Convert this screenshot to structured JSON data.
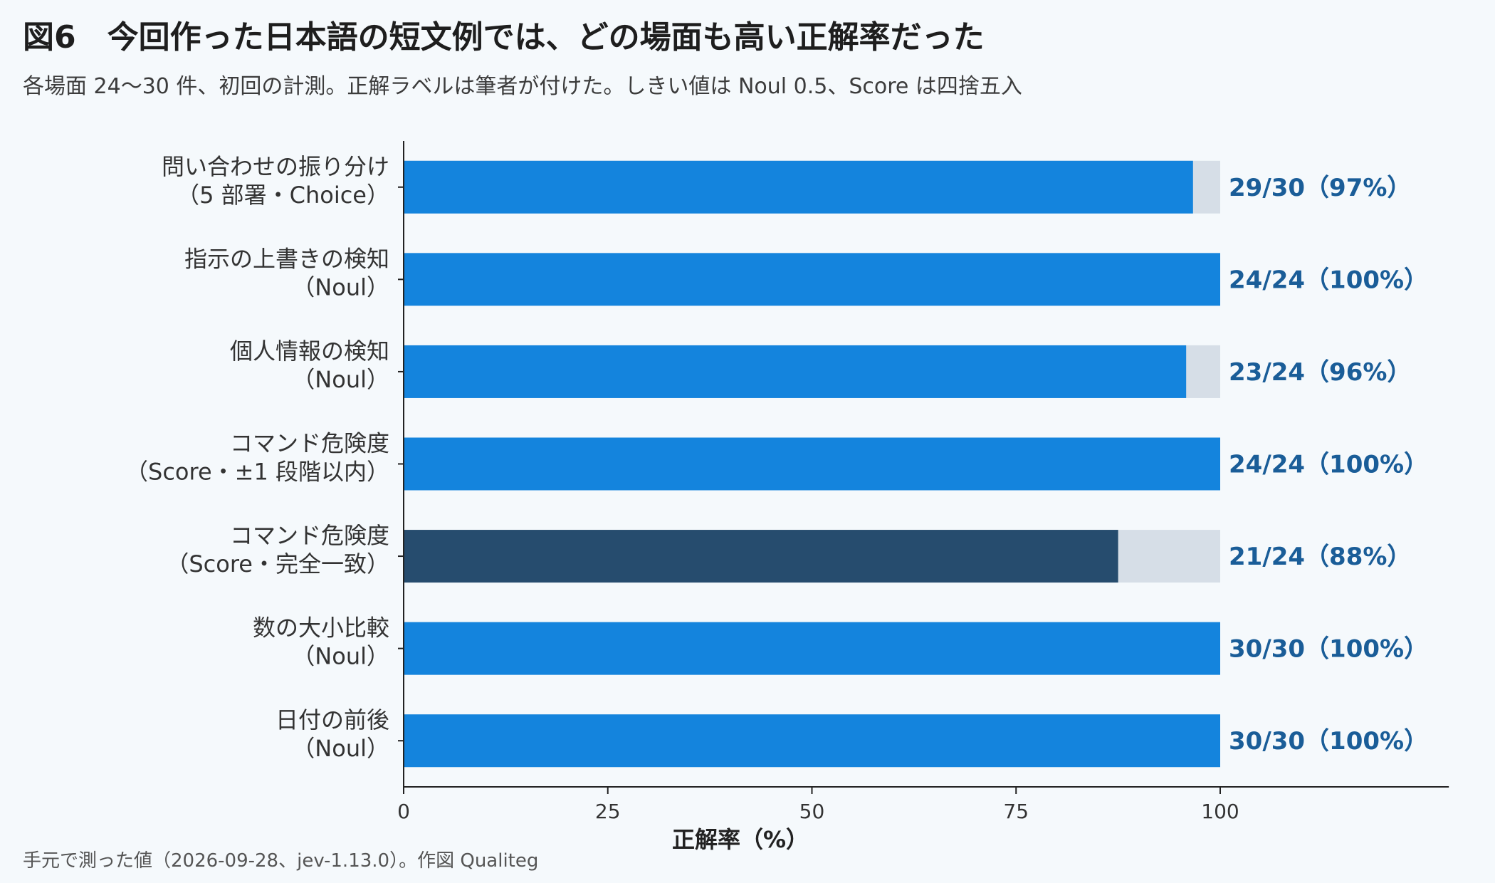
{
  "header": {
    "title": "図6　今回作った日本語の短文例では、どの場面も高い正解率だった",
    "subtitle": "各場面 24〜30 件、初回の計測。正解ラベルは筆者が付けた。しきい値は Noul 0.5、Score は四捨五入"
  },
  "footer": {
    "note": "手元で測った値（2026-09-28、jev-1.13.0）。作図 Qualiteg"
  },
  "colors": {
    "bar": "#1484dd",
    "bar_highlight": "#264c6e",
    "remainder": "#d6dee7",
    "value_text": "#1a5d98",
    "axis": "#222222"
  },
  "chart_data": {
    "type": "bar",
    "orientation": "horizontal",
    "categories": [
      [
        "問い合わせの振り分け",
        "（5 部署・Choice）"
      ],
      [
        "指示の上書きの検知",
        "（Noul）"
      ],
      [
        "個人情報の検知",
        "（Noul）"
      ],
      [
        "コマンド危険度",
        "（Score・±1 段階以内）"
      ],
      [
        "コマンド危険度",
        "（Score・完全一致）"
      ],
      [
        "数の大小比較",
        "（Noul）"
      ],
      [
        "日付の前後",
        "（Noul）"
      ]
    ],
    "values": [
      96.67,
      100,
      95.83,
      100,
      87.5,
      100,
      100
    ],
    "correct": [
      29,
      24,
      23,
      24,
      21,
      30,
      30
    ],
    "totals": [
      30,
      24,
      24,
      24,
      24,
      30,
      30
    ],
    "value_labels": [
      "29/30（97%）",
      "24/24（100%）",
      "23/24（96%）",
      "24/24（100%）",
      "21/24（88%）",
      "30/30（100%）",
      "30/30（100%）"
    ],
    "highlight_index": 4,
    "xlabel": "正解率（%）",
    "ylabel": "",
    "xlim": [
      0,
      128
    ],
    "xticks": [
      0,
      25,
      50,
      75,
      100
    ],
    "grid": false
  }
}
